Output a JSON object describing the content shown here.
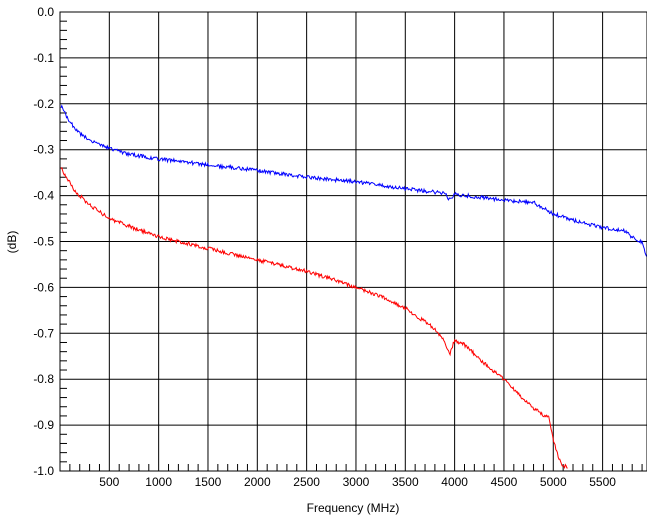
{
  "chart_data": {
    "type": "line",
    "title": "",
    "xlabel": "Frequency (MHz)",
    "ylabel": "(dB)",
    "xlim": [
      0,
      5950
    ],
    "ylim": [
      -1.0,
      0.0
    ],
    "grid": true,
    "x_tick_labels": [
      "500",
      "1000",
      "1500",
      "2000",
      "2500",
      "3000",
      "3500",
      "4000",
      "4500",
      "5000",
      "5500"
    ],
    "x_ticks": [
      500,
      1000,
      1500,
      2000,
      2500,
      3000,
      3500,
      4000,
      4500,
      5000,
      5500
    ],
    "y_tick_labels": [
      "0.0",
      "-0.1",
      "-0.2",
      "-0.3",
      "-0.4",
      "-0.5",
      "-0.6",
      "-0.7",
      "-0.8",
      "-0.9",
      "-1.0"
    ],
    "y_ticks": [
      0.0,
      -0.1,
      -0.2,
      -0.3,
      -0.4,
      -0.5,
      -0.6,
      -0.7,
      -0.8,
      -0.9,
      -1.0
    ],
    "series": [
      {
        "color": "#0000ff",
        "x": [
          10,
          100,
          200,
          300,
          400,
          500,
          700,
          1000,
          1500,
          2000,
          2500,
          3000,
          3500,
          3900,
          3950,
          4000,
          4500,
          4800,
          5000,
          5300,
          5500,
          5700,
          5800,
          5900,
          5950
        ],
        "y": [
          -0.205,
          -0.24,
          -0.265,
          -0.28,
          -0.29,
          -0.297,
          -0.31,
          -0.32,
          -0.333,
          -0.345,
          -0.36,
          -0.37,
          -0.385,
          -0.395,
          -0.41,
          -0.397,
          -0.41,
          -0.415,
          -0.44,
          -0.46,
          -0.47,
          -0.475,
          -0.49,
          -0.503,
          -0.535
        ]
      },
      {
        "color": "#ff0000",
        "x": [
          10,
          150,
          300,
          500,
          800,
          1000,
          1500,
          2000,
          2500,
          2800,
          3000,
          3200,
          3500,
          3800,
          3900,
          3950,
          4000,
          4100,
          4300,
          4500,
          4700,
          4900,
          4950,
          5000,
          5050,
          5100,
          5150
        ],
        "y": [
          -0.34,
          -0.39,
          -0.42,
          -0.45,
          -0.475,
          -0.49,
          -0.515,
          -0.54,
          -0.565,
          -0.585,
          -0.6,
          -0.615,
          -0.645,
          -0.69,
          -0.72,
          -0.745,
          -0.715,
          -0.725,
          -0.765,
          -0.8,
          -0.845,
          -0.88,
          -0.88,
          -0.93,
          -0.97,
          -0.99,
          -0.99
        ]
      }
    ]
  }
}
